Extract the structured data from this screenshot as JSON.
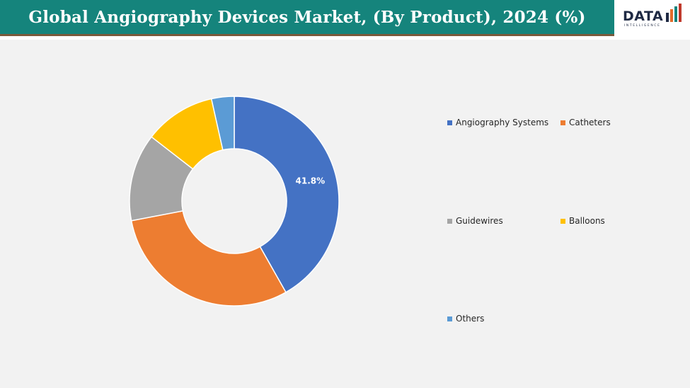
{
  "header": {
    "title": "Global Angiography Devices Market, (By Product), 2024 (%)"
  },
  "logo": {
    "word": "DATA",
    "sub": "INTELLIGENCE"
  },
  "chart_data": {
    "type": "pie",
    "variant": "donut",
    "title": "Global Angiography Devices Market, (By Product), 2024 (%)",
    "categories": [
      "Angiography Systems",
      "Catheters",
      "Guidewires",
      "Balloons",
      "Others"
    ],
    "values": [
      41.8,
      30.2,
      13.5,
      11.0,
      3.5
    ],
    "data_labels": [
      "41.8%",
      "",
      "",
      "",
      ""
    ],
    "colors": [
      "#4472c4",
      "#ed7d31",
      "#a5a5a5",
      "#ffc000",
      "#5b9bd5"
    ],
    "legend_position": "right"
  }
}
